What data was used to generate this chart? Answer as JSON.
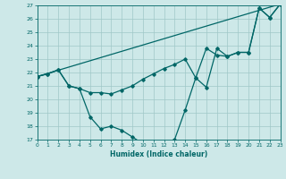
{
  "bg_color": "#cde8e8",
  "grid_color": "#a0c8c8",
  "line_color": "#006666",
  "xlabel": "Humidex (Indice chaleur)",
  "ylim": [
    17,
    27
  ],
  "xlim": [
    0,
    23
  ],
  "yticks": [
    17,
    18,
    19,
    20,
    21,
    22,
    23,
    24,
    25,
    26,
    27
  ],
  "xticks": [
    0,
    1,
    2,
    3,
    4,
    5,
    6,
    7,
    8,
    9,
    10,
    11,
    12,
    13,
    14,
    15,
    16,
    17,
    18,
    19,
    20,
    21,
    22,
    23
  ],
  "line1_x": [
    0,
    23
  ],
  "line1_y": [
    21.7,
    27.1
  ],
  "line2_x": [
    0,
    1,
    2,
    3,
    4,
    5,
    6,
    7,
    8,
    9,
    10,
    11,
    12,
    13,
    14,
    15,
    16,
    17,
    18,
    19,
    20,
    21,
    22,
    23
  ],
  "line2_y": [
    21.7,
    21.9,
    22.2,
    21.0,
    20.8,
    20.5,
    20.5,
    20.4,
    20.7,
    21.0,
    21.5,
    21.9,
    22.3,
    22.6,
    23.0,
    21.6,
    23.8,
    23.3,
    23.2,
    23.5,
    23.5,
    26.8,
    26.1,
    27.1
  ],
  "line3_x": [
    0,
    1,
    2,
    3,
    4,
    5,
    6,
    7,
    8,
    9,
    10,
    11,
    12,
    13,
    14,
    15,
    16,
    17,
    18,
    19,
    20,
    21,
    22,
    23
  ],
  "line3_y": [
    21.7,
    21.9,
    22.2,
    21.0,
    20.8,
    18.7,
    17.8,
    18.0,
    17.7,
    17.2,
    16.7,
    16.7,
    16.8,
    17.0,
    19.2,
    21.6,
    20.9,
    23.8,
    23.2,
    23.5,
    23.5,
    26.8,
    26.1,
    27.1
  ]
}
